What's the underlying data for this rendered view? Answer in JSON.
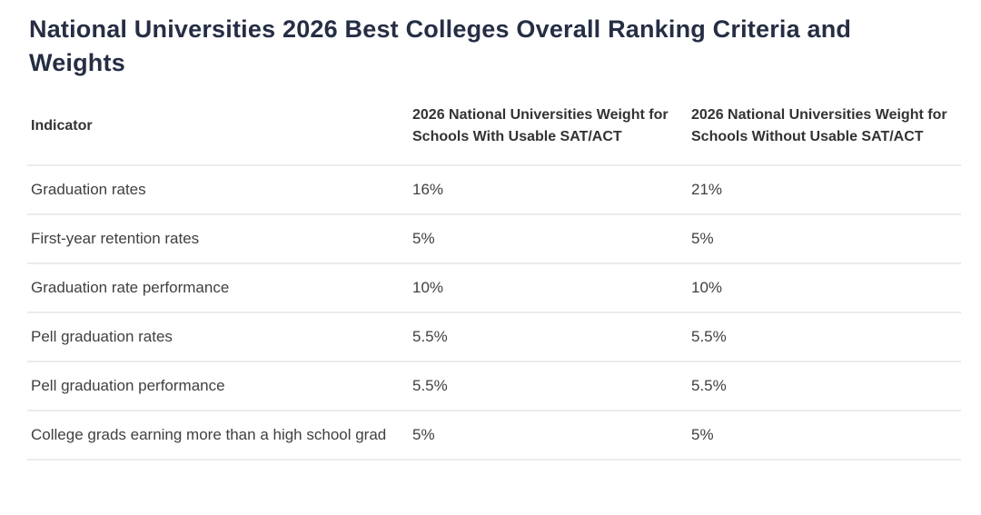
{
  "page": {
    "title": "National Universities 2026 Best Colleges Overall Ranking Criteria and Weights"
  },
  "table": {
    "columns": [
      "Indicator",
      "2026 National Universities Weight for Schools With Usable SAT/ACT",
      "2026 National Universities Weight for Schools Without Usable SAT/ACT"
    ],
    "rows": [
      {
        "indicator": "Graduation rates",
        "with_usable": "16%",
        "without_usable": "21%"
      },
      {
        "indicator": "First-year retention rates",
        "with_usable": "5%",
        "without_usable": "5%"
      },
      {
        "indicator": "Graduation rate performance",
        "with_usable": "10%",
        "without_usable": "10%"
      },
      {
        "indicator": "Pell graduation rates",
        "with_usable": "5.5%",
        "without_usable": "5.5%"
      },
      {
        "indicator": "Pell graduation performance",
        "with_usable": "5.5%",
        "without_usable": "5.5%"
      },
      {
        "indicator": "College grads earning more than a high school grad",
        "with_usable": "5%",
        "without_usable": "5%"
      }
    ]
  },
  "colors": {
    "background": "#ffffff",
    "title_text": "#262e44",
    "header_text": "#333333",
    "body_text": "#404040",
    "row_divider": "#ececec"
  }
}
